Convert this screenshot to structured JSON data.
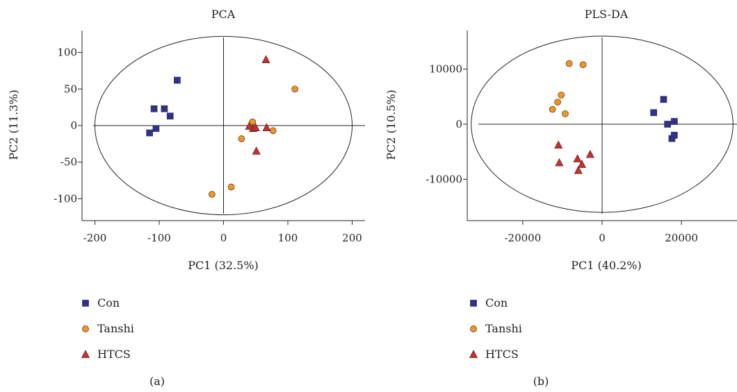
{
  "colors": {
    "Con": "#2e3192",
    "Tanshi": "#f7941d",
    "HTCS": "#d62a27",
    "axis": "#222222"
  },
  "chart_data": [
    {
      "type": "scatter",
      "panel_label": "(a)",
      "title": "PCA",
      "xlabel": "PC1 (32.5%)",
      "ylabel": "PC2 (11.3%)",
      "xlim": [
        -220,
        220
      ],
      "ylim": [
        -130,
        130
      ],
      "xticks": [
        -200,
        -100,
        0,
        100,
        200
      ],
      "yticks": [
        100,
        50,
        0,
        -50,
        -100
      ],
      "zero_lines": true,
      "ellipse": {
        "cx": 0,
        "cy": 0,
        "rx": 200,
        "ry": 122
      },
      "legend_position": "bottom-left",
      "series": [
        {
          "name": "Con",
          "marker": "square",
          "points": [
            [
              -72,
              62
            ],
            [
              -108,
              23
            ],
            [
              -92,
              23
            ],
            [
              -83,
              13
            ],
            [
              -105,
              -4
            ],
            [
              -115,
              -10
            ]
          ]
        },
        {
          "name": "Tanshi",
          "marker": "circle",
          "points": [
            [
              111,
              50
            ],
            [
              45,
              5
            ],
            [
              77,
              -7
            ],
            [
              28,
              -18
            ],
            [
              12,
              -84
            ],
            [
              -18,
              -94
            ]
          ]
        },
        {
          "name": "HTCS",
          "marker": "triangle",
          "points": [
            [
              66,
              90
            ],
            [
              40,
              -1
            ],
            [
              46,
              -4
            ],
            [
              50,
              -3
            ],
            [
              67,
              -3
            ],
            [
              51,
              -35
            ]
          ]
        }
      ]
    },
    {
      "type": "scatter",
      "panel_label": "(b)",
      "title": "PLS-DA",
      "xlabel": "PC1 (40.2%)",
      "ylabel": "PC2 (10.5%)",
      "xlim": [
        -34000,
        34000
      ],
      "ylim": [
        -17500,
        17000
      ],
      "xticks": [
        -20000,
        0,
        20000
      ],
      "yticks": [
        10000,
        0,
        -10000
      ],
      "zero_lines": true,
      "ellipse": {
        "cx": 0,
        "cy": 0,
        "rx": 33000,
        "ry": 16000
      },
      "legend_position": "bottom-left",
      "series": [
        {
          "name": "Con",
          "marker": "square",
          "points": [
            [
              15500,
              4500
            ],
            [
              13000,
              2100
            ],
            [
              16500,
              0
            ],
            [
              18200,
              500
            ],
            [
              17600,
              -2600
            ],
            [
              18200,
              -2000
            ]
          ]
        },
        {
          "name": "Tanshi",
          "marker": "circle",
          "points": [
            [
              -8300,
              11000
            ],
            [
              -4800,
              10800
            ],
            [
              -10300,
              5300
            ],
            [
              -11200,
              4000
            ],
            [
              -12500,
              2700
            ],
            [
              -9300,
              1900
            ]
          ]
        },
        {
          "name": "HTCS",
          "marker": "triangle",
          "points": [
            [
              -11000,
              -3800
            ],
            [
              -3000,
              -5500
            ],
            [
              -10800,
              -7000
            ],
            [
              -6200,
              -6300
            ],
            [
              -5100,
              -7300
            ],
            [
              -6000,
              -8400
            ]
          ]
        }
      ]
    }
  ]
}
